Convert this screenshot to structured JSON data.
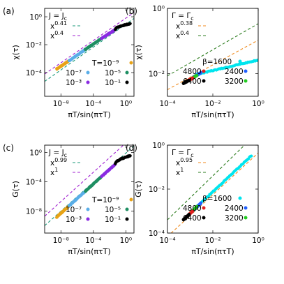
{
  "chart_data": [
    {
      "panel": "(a)",
      "type": "scatter",
      "xscale": "log",
      "yscale": "log",
      "xlim": [
        1e-10,
        10
      ],
      "ylim": [
        2e-06,
        4
      ],
      "xlabel": "πT/sin(πτT)",
      "ylabel": "χ(τ)",
      "xticks": [
        {
          "v": 1e-08,
          "t": "10⁻⁸"
        },
        {
          "v": 0.0001,
          "t": "10⁻⁴"
        },
        {
          "v": 1,
          "t": "10⁰"
        }
      ],
      "yticks": [
        {
          "v": 0.0001,
          "t": "10⁻⁴"
        },
        {
          "v": 0.01,
          "t": "10⁻²"
        },
        {
          "v": 1,
          "t": "10⁰"
        }
      ],
      "header": "J = J",
      "header_sub": "c",
      "ref_lines": [
        {
          "label": "x",
          "exp": "0.41",
          "color": "#1a9a7a",
          "slope": 0.41,
          "anchor_x": 1e-09,
          "anchor_y": 6e-05
        },
        {
          "label": "x",
          "exp": "0.4",
          "color": "#a020d0",
          "slope": 0.4,
          "anchor_x": 1e-09,
          "anchor_y": 0.0002
        }
      ],
      "series": [
        {
          "name": "T=10⁻⁹",
          "color": "#e8a317",
          "x": [
            3e-09,
            1e-07
          ],
          "y": [
            0.00018,
            0.0007
          ]
        },
        {
          "name": "10⁻⁷",
          "color": "#5aaee8",
          "x": [
            1e-07,
            1e-05
          ],
          "y": [
            0.0007,
            0.0045
          ]
        },
        {
          "name": "10⁻⁵",
          "color": "#1f8f63",
          "x": [
            1e-05,
            0.001
          ],
          "y": [
            0.0045,
            0.028
          ]
        },
        {
          "name": "10⁻³",
          "color": "#8a2be2",
          "x": [
            0.001,
            0.05
          ],
          "y": [
            0.028,
            0.12
          ]
        },
        {
          "name": "10⁻¹",
          "color": "#000000",
          "x": [
            0.05,
            3.5
          ],
          "y": [
            0.12,
            0.32
          ],
          "saturate": true
        }
      ]
    },
    {
      "panel": "(b)",
      "type": "scatter",
      "xscale": "log",
      "yscale": "log",
      "xlim": [
        0.0001,
        1
      ],
      "ylim": [
        0.002,
        1
      ],
      "xlabel": "πT/sin(πτT)",
      "ylabel": "χ(τ)",
      "xticks": [
        {
          "v": 0.0001,
          "t": "10⁻⁴"
        },
        {
          "v": 0.01,
          "t": "10⁻²"
        },
        {
          "v": 1,
          "t": "10⁰"
        }
      ],
      "yticks": [
        {
          "v": 0.01,
          "t": "10⁻²"
        },
        {
          "v": 1,
          "t": "10⁰"
        }
      ],
      "header": "Γ = Γ",
      "header_sub": "c",
      "ref_lines": [
        {
          "label": "x",
          "exp": "0.38",
          "color": "#f08a1c",
          "slope": 0.38,
          "anchor_x": 0.0001,
          "anchor_y": 0.0032
        },
        {
          "label": "x",
          "exp": "0.4",
          "color": "#2e7d20",
          "slope": 0.4,
          "anchor_x": 0.0001,
          "anchor_y": 0.0085
        }
      ],
      "series": [
        {
          "name": "β=1600",
          "color": "#00e5ee",
          "x": [
            0.002,
            1
          ],
          "y": [
            0.0095,
            0.026
          ]
        },
        {
          "name": "2400",
          "color": "#2060ff",
          "x": [
            0.0013,
            0.003
          ],
          "y": [
            0.0075,
            0.0105
          ]
        },
        {
          "name": "3200",
          "color": "#22cc22",
          "x": [
            0.001,
            0.002
          ],
          "y": [
            0.0066,
            0.0088
          ]
        },
        {
          "name": "4800",
          "color": "#e02020",
          "x": [
            0.0007,
            0.0013
          ],
          "y": [
            0.0058,
            0.0072
          ]
        },
        {
          "name": "6400",
          "color": "#000000",
          "x": [
            0.0005,
            0.0009
          ],
          "y": [
            0.005,
            0.0062
          ]
        }
      ]
    },
    {
      "panel": "(c)",
      "type": "scatter",
      "xscale": "log",
      "yscale": "log",
      "xlim": [
        1e-10,
        10
      ],
      "ylim": [
        1e-11,
        10
      ],
      "xlabel": "πT/sin(πτT)",
      "ylabel": "G(τ)",
      "xticks": [
        {
          "v": 1e-08,
          "t": "10⁻⁸"
        },
        {
          "v": 0.0001,
          "t": "10⁻⁴"
        },
        {
          "v": 1,
          "t": "10⁰"
        }
      ],
      "yticks": [
        {
          "v": 1e-08,
          "t": "10⁻⁸"
        },
        {
          "v": 0.0001,
          "t": "10⁻⁴"
        },
        {
          "v": 1,
          "t": "10⁰"
        }
      ],
      "header": "J = J",
      "header_sub": "c",
      "ref_lines": [
        {
          "label": "x",
          "exp": "0.99",
          "color": "#1a9a7a",
          "slope": 0.99,
          "anchor_x": 1e-09,
          "anchor_y": 1e-09
        },
        {
          "label": "x",
          "exp": "1",
          "color": "#a020d0",
          "slope": 1.0,
          "anchor_x": 1e-09,
          "anchor_y": 2e-08
        }
      ],
      "series": [
        {
          "name": "T=10⁻⁹",
          "color": "#e8a317",
          "x": [
            3e-09,
            1e-07
          ],
          "y": [
            1.5e-09,
            5e-08
          ]
        },
        {
          "name": "10⁻⁷",
          "color": "#5aaee8",
          "x": [
            1e-07,
            1e-05
          ],
          "y": [
            5e-08,
            5e-06
          ]
        },
        {
          "name": "10⁻⁵",
          "color": "#1f8f63",
          "x": [
            1e-05,
            0.001
          ],
          "y": [
            5e-06,
            0.0005
          ]
        },
        {
          "name": "10⁻³",
          "color": "#8a2be2",
          "x": [
            0.001,
            0.05
          ],
          "y": [
            0.0005,
            0.025
          ]
        },
        {
          "name": "10⁻¹",
          "color": "#000000",
          "x": [
            0.05,
            3.5
          ],
          "y": [
            0.025,
            0.35
          ],
          "saturate": true
        }
      ]
    },
    {
      "panel": "(d)",
      "type": "scatter",
      "xscale": "log",
      "yscale": "log",
      "xlim": [
        0.0001,
        1
      ],
      "ylim": [
        0.0001,
        1
      ],
      "xlabel": "πT/sin(πτT)",
      "ylabel": "G(τ)",
      "xticks": [
        {
          "v": 0.0001,
          "t": "10⁻⁴"
        },
        {
          "v": 0.01,
          "t": "10⁻²"
        },
        {
          "v": 1,
          "t": "10⁰"
        }
      ],
      "yticks": [
        {
          "v": 0.0001,
          "t": "10⁻⁴"
        },
        {
          "v": 0.01,
          "t": "10⁻²"
        },
        {
          "v": 1,
          "t": "10⁰"
        }
      ],
      "header": "Γ = Γ",
      "header_sub": "c",
      "ref_lines": [
        {
          "label": "x",
          "exp": "0.95",
          "color": "#f08a1c",
          "slope": 0.95,
          "anchor_x": 0.0001,
          "anchor_y": 7e-05
        },
        {
          "label": "x",
          "exp": "1",
          "color": "#2e7d20",
          "slope": 1.0,
          "anchor_x": 0.0001,
          "anchor_y": 0.0004
        }
      ],
      "series": [
        {
          "name": "β=1600",
          "color": "#00e5ee",
          "x": [
            0.002,
            0.5
          ],
          "y": [
            0.0016,
            0.33
          ]
        },
        {
          "name": "2400",
          "color": "#2060ff",
          "x": [
            0.0013,
            0.003
          ],
          "y": [
            0.001,
            0.0023
          ]
        },
        {
          "name": "3200",
          "color": "#22cc22",
          "x": [
            0.001,
            0.002
          ],
          "y": [
            0.0008,
            0.0016
          ]
        },
        {
          "name": "4800",
          "color": "#e02020",
          "x": [
            0.0007,
            0.0013
          ],
          "y": [
            0.00055,
            0.001
          ]
        },
        {
          "name": "6400",
          "color": "#000000",
          "x": [
            0.0005,
            0.0009
          ],
          "y": [
            0.0004,
            0.0007
          ]
        }
      ]
    }
  ]
}
